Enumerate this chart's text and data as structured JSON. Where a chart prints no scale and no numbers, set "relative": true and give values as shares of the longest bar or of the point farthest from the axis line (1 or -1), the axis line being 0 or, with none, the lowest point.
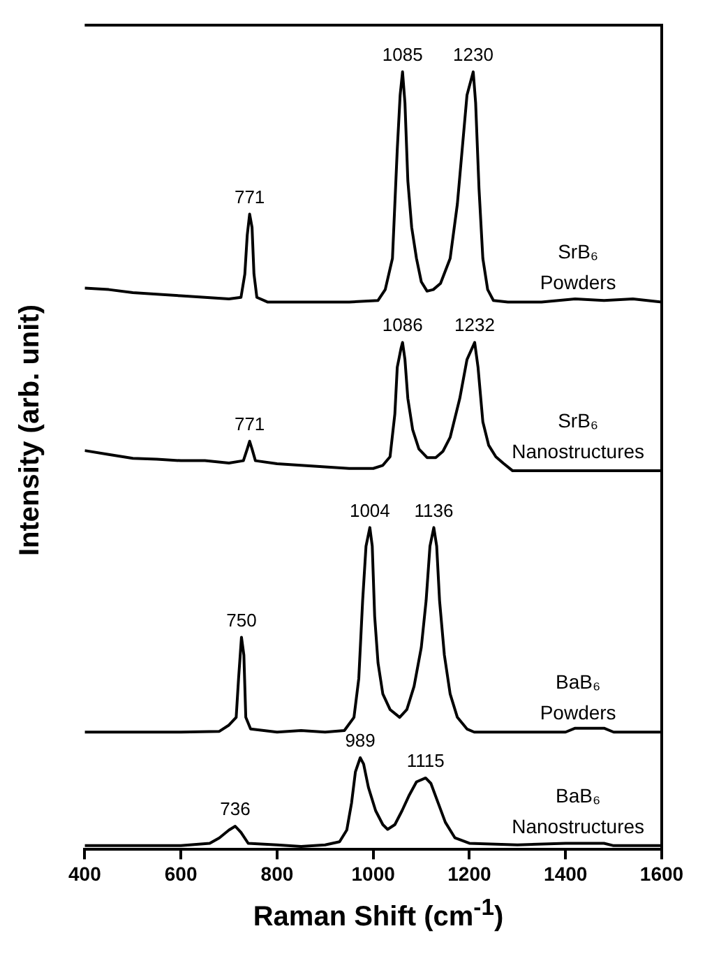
{
  "chart_data": {
    "type": "line",
    "xlabel": "Raman Shift (cm$^{-1}$)",
    "ylabel": "Intensity (arb. unit)",
    "relative": true,
    "xlim": [
      400,
      1600
    ],
    "xticks": [
      400,
      600,
      800,
      1000,
      1200,
      1400,
      1600
    ],
    "grid": false,
    "marker": "none",
    "line_style": "solid",
    "annotations": [
      {
        "text": "771",
        "x": 743,
        "y": 0.817
      },
      {
        "text": "1085",
        "x": 1061,
        "y": 1.0
      },
      {
        "text": "1230",
        "x": 1208,
        "y": 1.0
      },
      {
        "text": "771",
        "x": 743,
        "y": 0.525
      },
      {
        "text": "1086",
        "x": 1061,
        "y": 0.652
      },
      {
        "text": "1232",
        "x": 1211,
        "y": 0.652
      },
      {
        "text": "750",
        "x": 726,
        "y": 0.273
      },
      {
        "text": "1004",
        "x": 993,
        "y": 0.414
      },
      {
        "text": "1136",
        "x": 1126,
        "y": 0.414
      },
      {
        "text": "736",
        "x": 713,
        "y": 0.03
      },
      {
        "text": "989",
        "x": 973,
        "y": 0.118
      },
      {
        "text": "1115",
        "x": 1109,
        "y": 0.092
      }
    ],
    "series": [
      {
        "name": "SrB₆ Powders",
        "color": "#000000",
        "x": [
          400,
          450,
          500,
          550,
          600,
          650,
          700,
          725,
          733,
          738,
          743,
          748,
          752,
          758,
          780,
          850,
          950,
          1010,
          1025,
          1040,
          1050,
          1056,
          1061,
          1066,
          1072,
          1080,
          1090,
          1100,
          1112,
          1125,
          1140,
          1160,
          1175,
          1185,
          1195,
          1208,
          1213,
          1220,
          1228,
          1238,
          1250,
          1280,
          1350,
          1420,
          1480,
          1540,
          1600
        ],
        "values": [
          0.722,
          0.72,
          0.716,
          0.714,
          0.712,
          0.71,
          0.708,
          0.71,
          0.74,
          0.79,
          0.817,
          0.8,
          0.74,
          0.71,
          0.704,
          0.704,
          0.704,
          0.706,
          0.72,
          0.76,
          0.9,
          0.97,
          1.0,
          0.96,
          0.86,
          0.8,
          0.76,
          0.73,
          0.718,
          0.72,
          0.728,
          0.76,
          0.83,
          0.9,
          0.97,
          1.0,
          0.96,
          0.85,
          0.76,
          0.72,
          0.706,
          0.704,
          0.704,
          0.708,
          0.706,
          0.708,
          0.704
        ]
      },
      {
        "name": "SrB₆ Nanostructures",
        "color": "#000000",
        "x": [
          400,
          450,
          500,
          550,
          600,
          650,
          700,
          730,
          738,
          743,
          748,
          755,
          800,
          850,
          900,
          950,
          1000,
          1020,
          1035,
          1045,
          1050,
          1058,
          1061,
          1066,
          1072,
          1082,
          1095,
          1112,
          1130,
          1145,
          1160,
          1180,
          1195,
          1211,
          1218,
          1228,
          1240,
          1255,
          1270,
          1290,
          1400,
          1500,
          1600
        ],
        "values": [
          0.513,
          0.508,
          0.503,
          0.502,
          0.5,
          0.5,
          0.497,
          0.5,
          0.515,
          0.525,
          0.515,
          0.5,
          0.496,
          0.494,
          0.492,
          0.49,
          0.49,
          0.494,
          0.505,
          0.56,
          0.62,
          0.645,
          0.652,
          0.63,
          0.58,
          0.54,
          0.515,
          0.504,
          0.504,
          0.512,
          0.53,
          0.58,
          0.63,
          0.652,
          0.62,
          0.55,
          0.52,
          0.505,
          0.497,
          0.487,
          0.487,
          0.487,
          0.487
        ]
      },
      {
        "name": "BaB₆ Powders",
        "color": "#000000",
        "x": [
          400,
          500,
          600,
          680,
          700,
          715,
          720,
          726,
          731,
          735,
          745,
          800,
          850,
          900,
          940,
          960,
          970,
          978,
          985,
          993,
          998,
          1003,
          1010,
          1020,
          1035,
          1055,
          1070,
          1085,
          1100,
          1110,
          1118,
          1126,
          1132,
          1138,
          1148,
          1160,
          1175,
          1195,
          1210,
          1300,
          1400,
          1420,
          1480,
          1500,
          1600
        ],
        "values": [
          0.151,
          0.151,
          0.151,
          0.152,
          0.16,
          0.17,
          0.22,
          0.273,
          0.25,
          0.17,
          0.155,
          0.151,
          0.153,
          0.151,
          0.153,
          0.17,
          0.22,
          0.32,
          0.39,
          0.414,
          0.39,
          0.3,
          0.24,
          0.2,
          0.18,
          0.17,
          0.18,
          0.21,
          0.26,
          0.32,
          0.39,
          0.414,
          0.39,
          0.32,
          0.25,
          0.2,
          0.17,
          0.155,
          0.151,
          0.151,
          0.151,
          0.156,
          0.156,
          0.151,
          0.151
        ]
      },
      {
        "name": "BaB₆ Nanostructures",
        "color": "#000000",
        "x": [
          400,
          500,
          600,
          660,
          680,
          700,
          713,
          725,
          740,
          800,
          850,
          900,
          930,
          945,
          955,
          963,
          973,
          980,
          990,
          1005,
          1020,
          1030,
          1045,
          1060,
          1075,
          1090,
          1109,
          1120,
          1135,
          1150,
          1170,
          1200,
          1300,
          1400,
          1480,
          1500,
          1600
        ],
        "values": [
          0.005,
          0.005,
          0.005,
          0.008,
          0.015,
          0.025,
          0.03,
          0.022,
          0.008,
          0.006,
          0.004,
          0.006,
          0.01,
          0.025,
          0.06,
          0.1,
          0.118,
          0.11,
          0.08,
          0.05,
          0.032,
          0.026,
          0.032,
          0.05,
          0.07,
          0.087,
          0.092,
          0.085,
          0.06,
          0.035,
          0.015,
          0.008,
          0.006,
          0.008,
          0.008,
          0.005,
          0.005
        ]
      }
    ]
  }
}
